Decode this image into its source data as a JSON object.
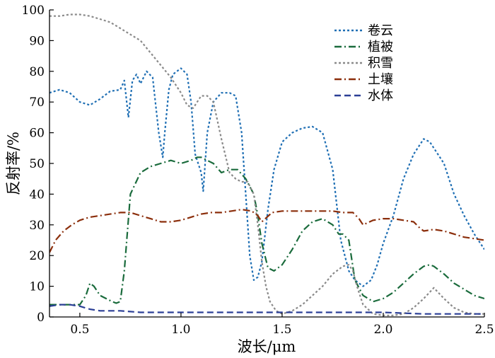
{
  "chart_data": {
    "type": "line",
    "xlabel": "波长/μm",
    "ylabel": "反射率/%",
    "xlim": [
      0.35,
      2.5
    ],
    "ylim": [
      0,
      100
    ],
    "xticks": [
      0.5,
      1.0,
      1.5,
      2.0,
      2.5
    ],
    "xtick_labels": [
      "0.5",
      "1.0",
      "1.5",
      "2.0",
      "2.5"
    ],
    "yticks": [
      0,
      10,
      20,
      30,
      40,
      50,
      60,
      70,
      80,
      90,
      100
    ],
    "ytick_labels": [
      "0",
      "10",
      "20",
      "30",
      "40",
      "50",
      "60",
      "70",
      "80",
      "90",
      "100"
    ],
    "grid": false,
    "legend_position": "top-right",
    "series": [
      {
        "name": "卷云",
        "color": "#1f6fb4",
        "dash": "dotted",
        "x": [
          0.35,
          0.4,
          0.45,
          0.5,
          0.55,
          0.6,
          0.65,
          0.7,
          0.72,
          0.74,
          0.76,
          0.78,
          0.8,
          0.83,
          0.86,
          0.89,
          0.91,
          0.92,
          0.94,
          0.96,
          1.0,
          1.03,
          1.05,
          1.07,
          1.1,
          1.11,
          1.13,
          1.16,
          1.2,
          1.24,
          1.27,
          1.3,
          1.32,
          1.34,
          1.36,
          1.38,
          1.4,
          1.43,
          1.46,
          1.5,
          1.55,
          1.6,
          1.65,
          1.7,
          1.75,
          1.79,
          1.83,
          1.86,
          1.9,
          1.94,
          1.97,
          2.0,
          2.05,
          2.1,
          2.15,
          2.2,
          2.23,
          2.25,
          2.28,
          2.3,
          2.35,
          2.4,
          2.45,
          2.5
        ],
        "y": [
          73,
          74,
          73,
          70,
          69,
          71,
          73.5,
          74,
          77,
          65,
          77,
          79,
          76,
          80,
          78,
          60,
          52,
          60,
          74,
          79,
          81,
          79,
          70,
          53,
          47,
          41,
          60,
          70,
          73,
          73,
          72,
          60,
          40,
          20,
          12,
          13,
          18,
          35,
          48,
          57,
          60,
          61.5,
          62,
          60,
          48,
          25,
          15,
          12,
          10,
          12,
          17,
          24,
          33,
          45,
          53,
          58,
          57,
          55,
          52,
          50,
          40,
          33,
          27,
          22
        ]
      },
      {
        "name": "植被",
        "color": "#1a6b3c",
        "dash": "dashdot",
        "x": [
          0.35,
          0.4,
          0.45,
          0.5,
          0.53,
          0.55,
          0.57,
          0.6,
          0.63,
          0.66,
          0.68,
          0.7,
          0.72,
          0.75,
          0.8,
          0.85,
          0.9,
          0.95,
          1.0,
          1.05,
          1.08,
          1.1,
          1.13,
          1.16,
          1.2,
          1.24,
          1.28,
          1.32,
          1.36,
          1.38,
          1.4,
          1.43,
          1.46,
          1.5,
          1.55,
          1.6,
          1.65,
          1.7,
          1.75,
          1.78,
          1.8,
          1.83,
          1.86,
          1.9,
          1.95,
          2.0,
          2.05,
          2.1,
          2.15,
          2.2,
          2.23,
          2.25,
          2.3,
          2.35,
          2.4,
          2.45,
          2.5
        ],
        "y": [
          4,
          4,
          4,
          4,
          7,
          11,
          10,
          7,
          6,
          5,
          4.5,
          5,
          15,
          40,
          47,
          49,
          50,
          51,
          50,
          51,
          52,
          52,
          51,
          50,
          47,
          48,
          48,
          45,
          40,
          33,
          24,
          16,
          15,
          17,
          22,
          28,
          31,
          32,
          30,
          27,
          27,
          25,
          12,
          7,
          5,
          6,
          8,
          11,
          14,
          16.5,
          17,
          16.5,
          14,
          11,
          9,
          7,
          6
        ]
      },
      {
        "name": "积雪",
        "color": "#8a8a8a",
        "dash": "dotted",
        "x": [
          0.35,
          0.4,
          0.45,
          0.5,
          0.55,
          0.6,
          0.65,
          0.7,
          0.75,
          0.8,
          0.85,
          0.9,
          0.95,
          1.0,
          1.03,
          1.06,
          1.1,
          1.13,
          1.16,
          1.2,
          1.24,
          1.27,
          1.3,
          1.33,
          1.36,
          1.38,
          1.4,
          1.42,
          1.44,
          1.47,
          1.5,
          1.55,
          1.6,
          1.65,
          1.7,
          1.75,
          1.8,
          1.83,
          1.85,
          1.87,
          1.9,
          1.95,
          2.0,
          2.05,
          2.1,
          2.15,
          2.2,
          2.25,
          2.3,
          2.35,
          2.4,
          2.45,
          2.5
        ],
        "y": [
          98,
          98,
          98.5,
          98.5,
          98,
          97,
          96,
          94,
          92,
          90,
          86,
          82,
          78,
          73,
          69,
          68,
          72,
          72,
          70,
          58,
          47,
          45,
          44,
          44,
          40,
          30,
          18,
          10,
          5,
          2,
          1,
          2,
          4,
          7,
          10,
          14,
          16.5,
          17,
          15,
          10,
          4,
          1,
          0.5,
          0.5,
          1,
          3,
          6,
          9.5,
          6,
          3,
          1.5,
          1,
          1
        ]
      },
      {
        "name": "土壤",
        "color": "#8b2e0b",
        "dash": "dashdot",
        "x": [
          0.35,
          0.38,
          0.42,
          0.46,
          0.5,
          0.55,
          0.6,
          0.65,
          0.7,
          0.75,
          0.8,
          0.85,
          0.9,
          0.95,
          1.0,
          1.05,
          1.1,
          1.15,
          1.2,
          1.25,
          1.3,
          1.35,
          1.38,
          1.4,
          1.45,
          1.5,
          1.55,
          1.6,
          1.65,
          1.7,
          1.75,
          1.8,
          1.85,
          1.88,
          1.9,
          1.95,
          2.0,
          2.05,
          2.1,
          2.15,
          2.18,
          2.2,
          2.25,
          2.3,
          2.35,
          2.4,
          2.45,
          2.5
        ],
        "y": [
          21,
          25,
          28,
          30,
          31.5,
          32.5,
          33,
          33.5,
          34,
          34,
          33,
          32,
          31,
          31,
          31.5,
          32.5,
          33.5,
          34,
          34,
          34.5,
          35,
          34.5,
          33,
          31,
          34,
          34.5,
          34.5,
          34.5,
          34.5,
          34.5,
          34.5,
          34,
          34,
          32,
          30,
          31.5,
          32,
          32,
          31.5,
          31,
          29,
          28,
          28.5,
          28,
          27,
          26,
          25.5,
          25
        ]
      },
      {
        "name": "水体",
        "color": "#2b3f96",
        "dash": "dashed",
        "x": [
          0.35,
          0.4,
          0.45,
          0.5,
          0.55,
          0.6,
          0.7,
          0.8,
          0.9,
          1.0,
          1.2,
          1.4,
          1.6,
          1.8,
          2.0,
          2.2,
          2.4,
          2.5
        ],
        "y": [
          3.5,
          4,
          4,
          3.5,
          2.5,
          2,
          2,
          1.5,
          1.5,
          1.5,
          1.5,
          1.5,
          1.5,
          1.5,
          1.5,
          1,
          1,
          1
        ]
      }
    ]
  }
}
